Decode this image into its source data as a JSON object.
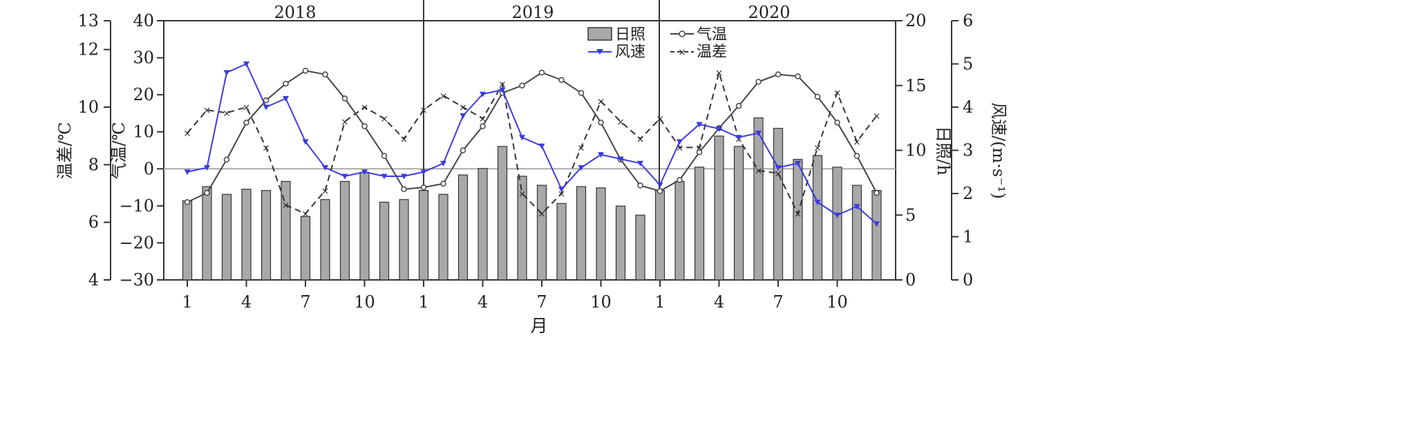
{
  "chart_data": {
    "type": "bar",
    "years": [
      "2018",
      "2019",
      "2020"
    ],
    "x_tick_labels": [
      "1",
      "4",
      "7",
      "10",
      "1",
      "4",
      "7",
      "10",
      "1",
      "4",
      "7",
      "10"
    ],
    "xlabel": "月",
    "axes": {
      "diff": {
        "label": "温差/℃",
        "ticks": [
          "4",
          "6",
          "8",
          "10",
          "12",
          "13"
        ],
        "lim": [
          4,
          13
        ]
      },
      "temp": {
        "label": "气温/℃",
        "ticks": [
          "−30",
          "−20",
          "−10",
          "0",
          "10",
          "20",
          "30",
          "40"
        ],
        "lim": [
          -30,
          40
        ]
      },
      "sun": {
        "label": "日照/h",
        "ticks": [
          "0",
          "5",
          "10",
          "15",
          "20"
        ],
        "lim": [
          0,
          20
        ]
      },
      "wind": {
        "label": "风速/(m·s⁻¹)",
        "ticks": [
          "0",
          "1",
          "2",
          "3",
          "4",
          "5",
          "6"
        ],
        "lim": [
          0,
          6
        ]
      }
    },
    "legend": {
      "sun": "日照",
      "wind": "风速",
      "temp": "气温",
      "diff": "温差"
    },
    "colors": {
      "bar_fill": "#a8a8a8",
      "bar_stroke": "#333333",
      "temp": "#444444",
      "wind": "#3a3ae0",
      "diff": "#333333",
      "zero_line": "#aaaaaa"
    },
    "series": [
      {
        "name": "日照",
        "axis": "sun",
        "values": [
          6.1,
          7.2,
          6.6,
          7.0,
          6.9,
          7.6,
          4.9,
          6.2,
          7.6,
          8.3,
          6.0,
          6.2,
          6.9,
          6.6,
          8.1,
          8.6,
          10.3,
          8.0,
          7.3,
          5.9,
          7.2,
          7.1,
          5.7,
          5.0,
          6.9,
          7.6,
          8.7,
          11.1,
          10.3,
          12.5,
          11.7,
          9.3,
          9.6,
          8.7,
          7.3,
          6.9
        ]
      },
      {
        "name": "气温",
        "axis": "temp",
        "values": [
          -9,
          -6.5,
          2.5,
          12.5,
          18.5,
          23,
          26.5,
          25.5,
          19,
          11.5,
          3.5,
          -5.5,
          -5,
          -4,
          5,
          11.5,
          20.5,
          22.5,
          26,
          24,
          20.5,
          12.5,
          2.5,
          -4.5,
          -6,
          -3,
          4.5,
          11,
          17,
          23.5,
          25.5,
          25,
          19.5,
          12.5,
          3.5,
          -6.5
        ]
      },
      {
        "name": "风速",
        "axis": "wind",
        "values": [
          2.5,
          2.6,
          4.8,
          5.0,
          4.0,
          4.2,
          3.2,
          2.6,
          2.4,
          2.5,
          2.4,
          2.4,
          2.5,
          2.7,
          3.8,
          4.3,
          4.4,
          3.3,
          3.1,
          2.1,
          2.6,
          2.9,
          2.8,
          2.7,
          2.2,
          3.2,
          3.6,
          3.5,
          3.3,
          3.4,
          2.6,
          2.7,
          1.8,
          1.5,
          1.7,
          1.3
        ]
      },
      {
        "name": "温差",
        "axis": "diff",
        "values": [
          9.1,
          9.9,
          9.8,
          10.0,
          8.6,
          6.6,
          6.3,
          7.1,
          9.5,
          10.0,
          9.6,
          8.9,
          9.9,
          10.4,
          10.0,
          9.6,
          10.8,
          7.0,
          6.3,
          7.0,
          8.6,
          10.2,
          9.5,
          8.9,
          9.6,
          8.6,
          8.6,
          11.2,
          8.9,
          7.8,
          7.7,
          6.3,
          8.6,
          10.5,
          8.8,
          9.7
        ]
      }
    ]
  }
}
